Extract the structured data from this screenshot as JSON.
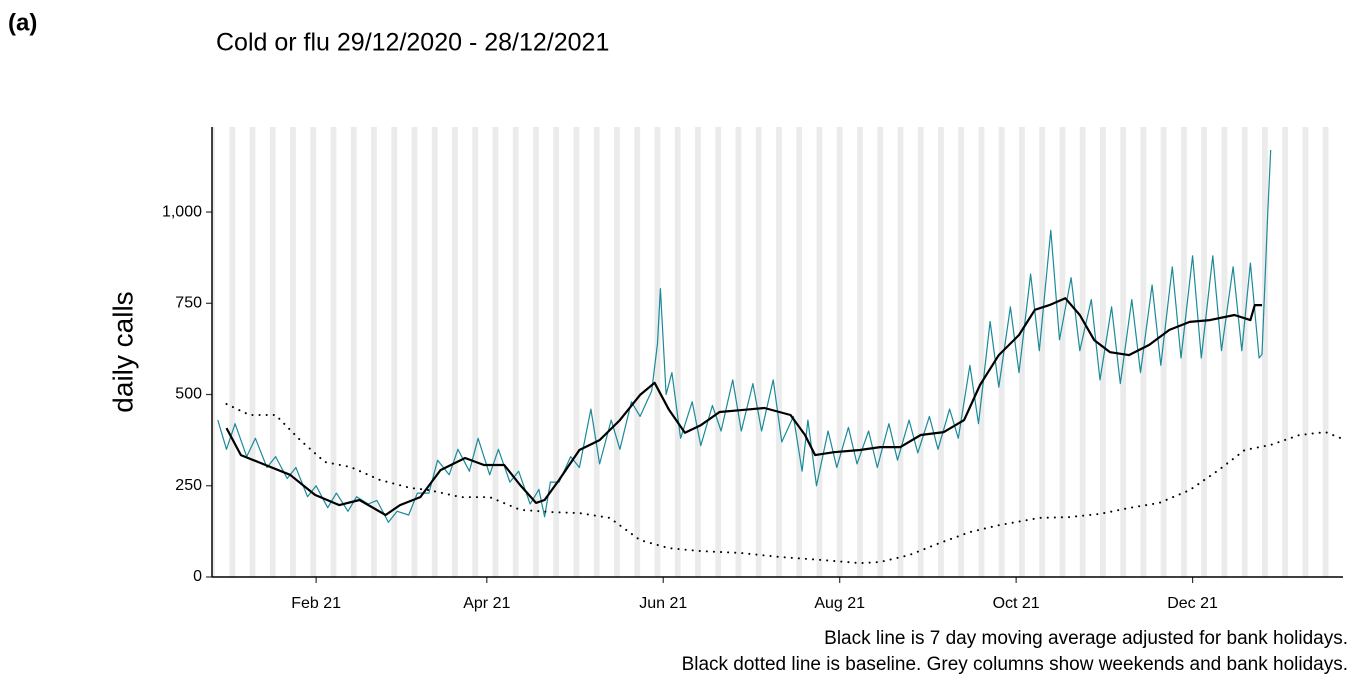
{
  "panel_label": "(a)",
  "chart_data": {
    "type": "line",
    "title": "Cold or flu 29/12/2020 - 28/12/2021",
    "y_label": "daily calls",
    "caption": [
      "Black line is 7 day moving average adjusted for bank holidays.",
      "Black dotted line is baseline. Grey columns show weekends and bank holidays."
    ],
    "xlim": [
      -5,
      386
    ],
    "xticks": [
      {
        "value": 31,
        "label": "Feb 21"
      },
      {
        "value": 90,
        "label": "Apr 21"
      },
      {
        "value": 151,
        "label": "Jun 21"
      },
      {
        "value": 212,
        "label": "Aug 21"
      },
      {
        "value": 273,
        "label": "Oct 21"
      },
      {
        "value": 334,
        "label": "Dec 21"
      }
    ],
    "ylim": [
      0,
      1233
    ],
    "yticks": [
      0,
      250,
      500,
      750,
      {
        "value": 1000,
        "label": "1,000"
      }
    ],
    "weekend_columns": true,
    "column_color": "#ebebeb",
    "series": [
      {
        "color": "#1b8a99",
        "line_width": 1.2,
        "dash": "solid",
        "x": [
          -3,
          0,
          3,
          7,
          10,
          14,
          17,
          21,
          24,
          28,
          31,
          35,
          38,
          42,
          45,
          49,
          52,
          56,
          59,
          63,
          66,
          70,
          73,
          77,
          80,
          84,
          87,
          91,
          94,
          98,
          101,
          105,
          108,
          110,
          112,
          115,
          119,
          122,
          126,
          129,
          133,
          136,
          140,
          143,
          147,
          149,
          150,
          152,
          154,
          157,
          161,
          164,
          168,
          171,
          175,
          178,
          182,
          185,
          189,
          192,
          196,
          199,
          201,
          204,
          208,
          211,
          215,
          218,
          222,
          225,
          229,
          232,
          236,
          239,
          243,
          246,
          250,
          253,
          257,
          260,
          264,
          267,
          271,
          274,
          278,
          281,
          285,
          288,
          292,
          295,
          299,
          302,
          306,
          309,
          313,
          316,
          320,
          323,
          327,
          330,
          334,
          337,
          341,
          344,
          348,
          351,
          354,
          357,
          358,
          360,
          361
        ],
        "values": [
          430,
          350,
          420,
          330,
          380,
          300,
          330,
          270,
          300,
          220,
          250,
          190,
          230,
          180,
          220,
          200,
          210,
          150,
          180,
          170,
          230,
          230,
          320,
          280,
          350,
          290,
          380,
          280,
          350,
          260,
          290,
          200,
          240,
          165,
          260,
          260,
          330,
          300,
          460,
          310,
          430,
          350,
          480,
          440,
          510,
          640,
          790,
          500,
          560,
          380,
          480,
          360,
          470,
          400,
          540,
          400,
          530,
          400,
          540,
          370,
          440,
          290,
          430,
          250,
          400,
          300,
          410,
          310,
          400,
          300,
          420,
          320,
          430,
          340,
          440,
          350,
          460,
          380,
          580,
          420,
          700,
          520,
          740,
          560,
          830,
          620,
          950,
          650,
          820,
          620,
          760,
          540,
          740,
          530,
          760,
          560,
          800,
          580,
          850,
          600,
          880,
          600,
          880,
          620,
          850,
          620,
          860,
          600,
          610,
          1000,
          1170
        ]
      },
      {
        "color": "#000000",
        "line_width": 2.2,
        "dash": "solid",
        "x": [
          0,
          5,
          13.5,
          22,
          30.6,
          39,
          46,
          55,
          60,
          67,
          74,
          82.5,
          89,
          96,
          101.5,
          107,
          110,
          115,
          122,
          129,
          136,
          143,
          148,
          153,
          158.5,
          164,
          170.5,
          179,
          186,
          195,
          200,
          203.5,
          210,
          219,
          226,
          233,
          240,
          248,
          255,
          260.5,
          267,
          274,
          279.5,
          284.5,
          290,
          295,
          300,
          305.5,
          312,
          319,
          326,
          333,
          340,
          348.5,
          354,
          355.5,
          358
        ],
        "values": [
          408,
          334,
          307,
          280,
          225,
          197,
          211,
          170,
          197,
          219,
          293,
          326,
          307,
          307,
          252,
          203,
          211,
          266,
          348,
          375,
          430,
          499,
          532,
          458,
          395,
          416,
          452,
          458,
          463,
          444,
          389,
          334,
          342,
          348,
          356,
          356,
          389,
          397,
          430,
          526,
          608,
          663,
          732,
          745,
          764,
          718,
          649,
          616,
          608,
          636,
          677,
          699,
          704,
          718,
          704,
          745,
          745
        ]
      },
      {
        "color": "#000000",
        "line_width": 2,
        "dash": "dotted",
        "x": [
          0,
          8,
          17,
          25.5,
          34,
          43,
          53,
          63.5,
          70,
          81,
          91,
          101.5,
          112,
          122,
          132.5,
          143,
          153,
          164,
          177.5,
          191,
          205,
          219,
          226,
          236,
          246.5,
          257,
          267,
          281,
          291.5,
          302,
          312,
          322.5,
          333,
          343,
          352,
          361,
          371,
          380,
          385
        ],
        "values": [
          474,
          444,
          444,
          375,
          315,
          301,
          266,
          244,
          238,
          219,
          219,
          184,
          178,
          175,
          162,
          101,
          79,
          71,
          66,
          55,
          47,
          38,
          41,
          60,
          93,
          123,
          142,
          162,
          164,
          173,
          189,
          203,
          238,
          293,
          348,
          362,
          389,
          397,
          381
        ]
      }
    ]
  }
}
